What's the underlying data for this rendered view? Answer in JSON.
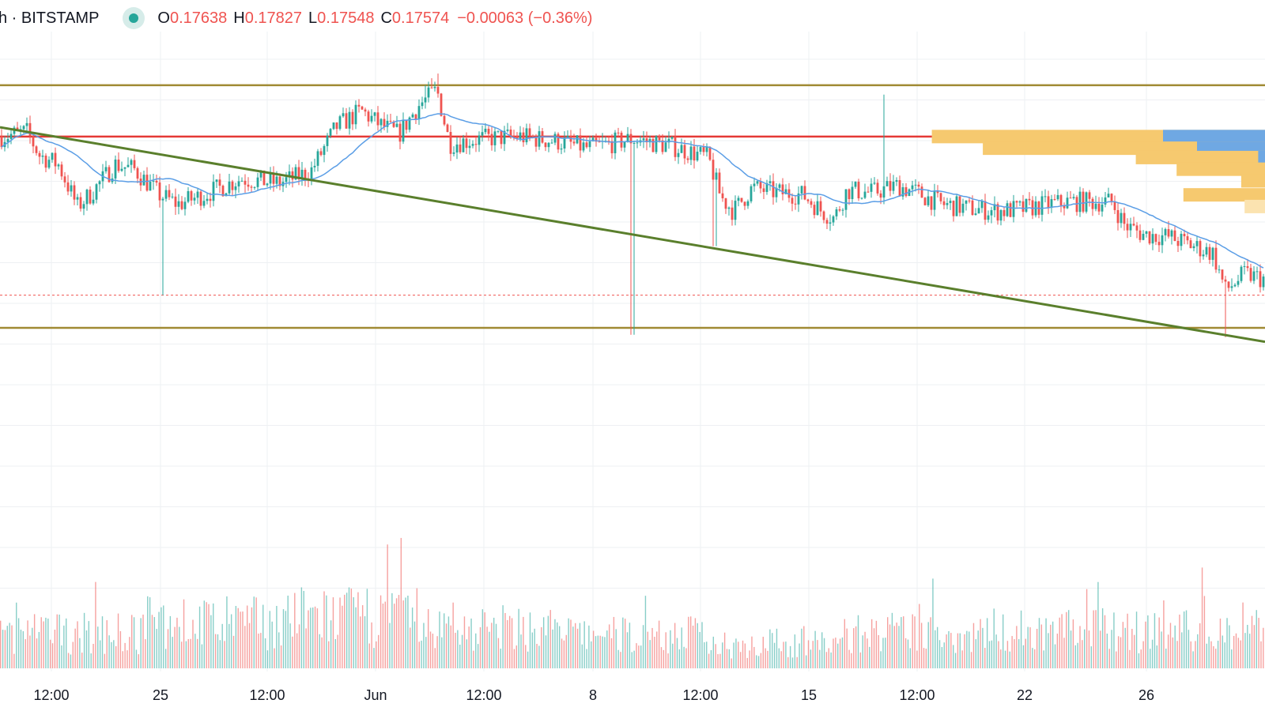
{
  "legend": {
    "symbol_suffix": "h · BITSTAMP",
    "open_key": "O",
    "open": "0.17638",
    "high_key": "H",
    "high": "0.17827",
    "low_key": "L",
    "low": "0.17548",
    "close_key": "C",
    "close": "0.17574",
    "change": "−0.00063 (−0.36%)"
  },
  "colors": {
    "up": "#26a69a",
    "down": "#ef5350",
    "ma": "#5b9ee6",
    "support_resistance": "#a08a33",
    "horizontal_level": "#e53935",
    "trendline": "#5a7f2c",
    "volume_profile": "#f6c96f",
    "volume_profile_light": "#fbe3b0",
    "volume_profile_accent": "#6fa8e3",
    "grid": "#eef0f3"
  },
  "chart_data": {
    "type": "candlestick",
    "exchange": "BITSTAMP",
    "x_tick_labels": [
      "12:00",
      "25",
      "12:00",
      "Jun",
      "12:00",
      "8",
      "12:00",
      "15",
      "12:00",
      "22",
      "26"
    ],
    "ylim": [
      0.163,
      0.184
    ],
    "price_levels": {
      "upper_horizontal": 0.1817,
      "red_horizontal": 0.1795,
      "lower_horizontal": 0.1713,
      "last_price_dotted": 0.1727
    },
    "trendline": {
      "start": {
        "tick": "before 12:00",
        "price": 0.1799
      },
      "end": {
        "tick": "after 26",
        "price": 0.1707
      }
    },
    "price_path": [
      {
        "t": 0,
        "p": 0.1795
      },
      {
        "t": 0.02,
        "p": 0.1797
      },
      {
        "t": 0.03,
        "p": 0.1787
      },
      {
        "t": 0.045,
        "p": 0.1783
      },
      {
        "t": 0.06,
        "p": 0.1765
      },
      {
        "t": 0.07,
        "p": 0.177
      },
      {
        "t": 0.09,
        "p": 0.1783
      },
      {
        "t": 0.105,
        "p": 0.1781
      },
      {
        "t": 0.125,
        "p": 0.177
      },
      {
        "t": 0.14,
        "p": 0.1766
      },
      {
        "t": 0.16,
        "p": 0.177
      },
      {
        "t": 0.19,
        "p": 0.1777
      },
      {
        "t": 0.22,
        "p": 0.1775
      },
      {
        "t": 0.245,
        "p": 0.178
      },
      {
        "t": 0.265,
        "p": 0.1799
      },
      {
        "t": 0.285,
        "p": 0.1806
      },
      {
        "t": 0.3,
        "p": 0.18
      },
      {
        "t": 0.315,
        "p": 0.1796
      },
      {
        "t": 0.33,
        "p": 0.1808
      },
      {
        "t": 0.345,
        "p": 0.1815
      },
      {
        "t": 0.355,
        "p": 0.1792
      },
      {
        "t": 0.38,
        "p": 0.1794
      },
      {
        "t": 0.41,
        "p": 0.1795
      },
      {
        "t": 0.44,
        "p": 0.1793
      },
      {
        "t": 0.465,
        "p": 0.179
      },
      {
        "t": 0.5,
        "p": 0.1794
      },
      {
        "t": 0.53,
        "p": 0.1791
      },
      {
        "t": 0.56,
        "p": 0.1786
      },
      {
        "t": 0.57,
        "p": 0.1769
      },
      {
        "t": 0.58,
        "p": 0.1763
      },
      {
        "t": 0.595,
        "p": 0.1773
      },
      {
        "t": 0.615,
        "p": 0.1771
      },
      {
        "t": 0.635,
        "p": 0.177
      },
      {
        "t": 0.65,
        "p": 0.1763
      },
      {
        "t": 0.66,
        "p": 0.176
      },
      {
        "t": 0.67,
        "p": 0.1772
      },
      {
        "t": 0.69,
        "p": 0.1771
      },
      {
        "t": 0.71,
        "p": 0.1774
      },
      {
        "t": 0.725,
        "p": 0.1771
      },
      {
        "t": 0.745,
        "p": 0.1766
      },
      {
        "t": 0.77,
        "p": 0.1764
      },
      {
        "t": 0.79,
        "p": 0.1763
      },
      {
        "t": 0.81,
        "p": 0.1764
      },
      {
        "t": 0.83,
        "p": 0.1766
      },
      {
        "t": 0.845,
        "p": 0.1767
      },
      {
        "t": 0.88,
        "p": 0.1767
      },
      {
        "t": 0.89,
        "p": 0.1757
      },
      {
        "t": 0.905,
        "p": 0.1753
      },
      {
        "t": 0.925,
        "p": 0.1752
      },
      {
        "t": 0.94,
        "p": 0.1749
      },
      {
        "t": 0.96,
        "p": 0.1745
      },
      {
        "t": 0.97,
        "p": 0.1729
      },
      {
        "t": 0.985,
        "p": 0.1736
      },
      {
        "t": 1.0,
        "p": 0.1734
      }
    ],
    "volume": {
      "relative_peaks": [
        0.42,
        0.55,
        0.62,
        0.48,
        0.4,
        0.3,
        0.42,
        0.46,
        0.45
      ]
    },
    "volume_profile": {
      "rows": [
        {
          "price": 0.1795,
          "size": 0.98,
          "accent": 0.3
        },
        {
          "price": 0.179,
          "size": 0.83,
          "accent": 0.2
        },
        {
          "price": 0.1786,
          "size": 0.38,
          "accent": 0.02
        },
        {
          "price": 0.1781,
          "size": 0.26,
          "accent": 0.0
        },
        {
          "price": 0.1776,
          "size": 0.07,
          "accent": 0.0
        },
        {
          "price": 0.177,
          "size": 0.24,
          "accent": 0.0
        },
        {
          "price": 0.1765,
          "size": 0.06,
          "accent": 0.0,
          "light": true
        }
      ]
    }
  }
}
